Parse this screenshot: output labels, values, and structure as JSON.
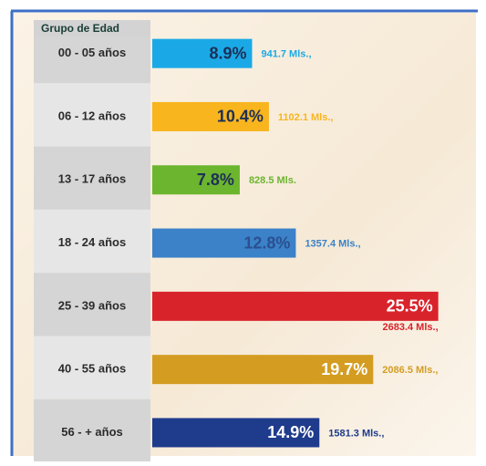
{
  "chart_data": {
    "type": "bar",
    "orientation": "horizontal",
    "title": "Grupo de Edad",
    "categories": [
      "00 - 05 años",
      "06 - 12 años",
      "13 - 17 años",
      "18 - 24 años",
      "25 - 39 años",
      "40 - 55 años",
      "56 - + años"
    ],
    "series": [
      {
        "values": [
          8.9,
          10.4,
          7.8,
          12.8,
          25.5,
          19.7,
          14.9
        ],
        "value_labels": [
          "8.9%",
          "10.4%",
          "7.8%",
          "12.8%",
          "25.5%",
          "19.7%",
          "14.9%"
        ]
      },
      {
        "values": [
          941.7,
          1102.1,
          828.5,
          1357.4,
          2683.4,
          2086.5,
          1581.3
        ],
        "value_labels": [
          "941.7 Mls.,",
          "1102.1 Mls.,",
          "828.5 Mls.",
          "1357.4 Mls.,",
          "2683.4 Mls.,",
          "2086.5 Mls.,",
          "1581.3 Mls.,"
        ]
      }
    ],
    "colors": [
      "#1aa9e6",
      "#f8b51e",
      "#6cb52f",
      "#3b82c8",
      "#d9232b",
      "#d49d22",
      "#1f3b8c"
    ],
    "label_colors": [
      "#1c2f55",
      "#1c2f55",
      "#1c2f55",
      "#2b4f90",
      "#ffffff",
      "#ffffff",
      "#ffffff"
    ]
  }
}
